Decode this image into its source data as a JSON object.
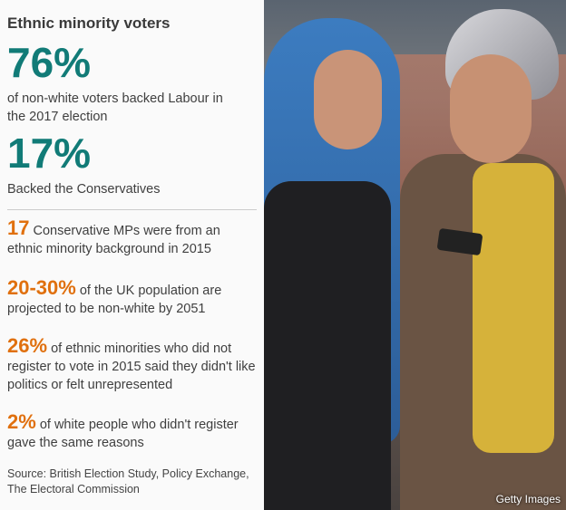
{
  "title": "Ethnic minority voters",
  "stats": [
    {
      "value": "76%",
      "text": "of non-white voters backed Labour in the 2017 election"
    },
    {
      "value": "17%",
      "text": "Backed the Conservatives"
    }
  ],
  "facts": [
    {
      "value": "17",
      "text": " Conservative MPs were from an ethnic minority background in 2015"
    },
    {
      "value": "20-30%",
      "text": " of the UK population are projected to be non-white by 2051"
    },
    {
      "value": "26%",
      "text": " of ethnic minorities who did not register to vote in 2015 said they didn't like politics or felt unrepresented"
    },
    {
      "value": "2%",
      "text": " of white people who didn't register gave the same reasons"
    }
  ],
  "source": "Source: British Election Study, Policy Exchange, The Electoral Commission",
  "photo_credit": "Getty Images",
  "colors": {
    "teal": "#117b77",
    "orange": "#e0700e"
  }
}
